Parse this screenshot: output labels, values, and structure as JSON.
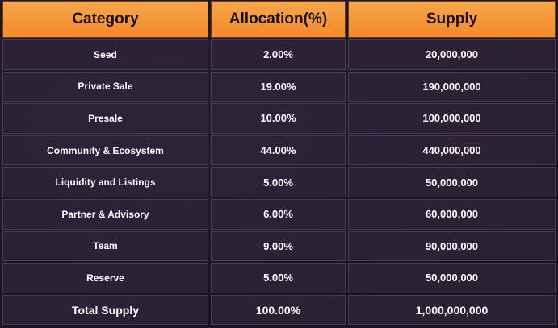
{
  "table": {
    "header": [
      "Category",
      "Allocation(%)",
      "Supply"
    ],
    "rows": [
      [
        "Seed",
        "2.00%",
        "20,000,000"
      ],
      [
        "Private Sale",
        "19.00%",
        "190,000,000"
      ],
      [
        "Presale",
        "10.00%",
        "100,000,000"
      ],
      [
        "Community & Ecosystem",
        "44.00%",
        "440,000,000"
      ],
      [
        "Liquidity and Listings",
        "5.00%",
        "50,000,000"
      ],
      [
        "Partner & Advisory",
        "6.00%",
        "60,000,000"
      ],
      [
        "Team",
        "9.00%",
        "90,000,000"
      ],
      [
        "Reserve",
        "5.00%",
        "50,000,000"
      ]
    ],
    "footer": [
      "Total Supply",
      "100.00%",
      "1,000,000,000"
    ]
  }
}
